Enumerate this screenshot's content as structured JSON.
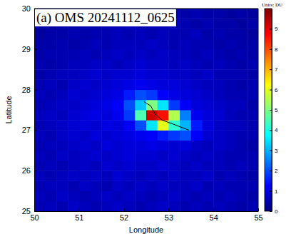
{
  "chart_data": {
    "type": "heatmap",
    "title": "(a) OMS 20241112_0625",
    "xlabel": "Longitude",
    "ylabel": "Latitude",
    "xlim": [
      50,
      55
    ],
    "ylim": [
      25,
      30
    ],
    "xticks": [
      50,
      51,
      52,
      53,
      54,
      55
    ],
    "yticks": [
      25,
      26,
      27,
      28,
      29,
      30
    ],
    "x_edges": [
      50,
      50.25,
      50.5,
      50.75,
      51,
      51.25,
      51.5,
      51.75,
      52,
      52.25,
      52.5,
      52.75,
      53,
      53.25,
      53.5,
      53.75,
      54,
      54.25,
      54.5,
      54.75,
      55
    ],
    "y_edges": [
      25,
      25.25,
      25.5,
      25.75,
      26,
      26.25,
      26.5,
      26.75,
      27,
      27.25,
      27.5,
      27.75,
      28,
      28.25,
      28.5,
      28.75,
      29,
      29.25,
      29.5,
      29.75,
      30
    ],
    "z": [
      [
        0.5,
        0.6,
        0.5,
        0.7,
        0.6,
        0.5,
        0.6,
        0.7,
        0.6,
        0.5,
        0.6,
        0.7,
        0.6,
        0.5,
        0.6,
        0.5,
        0.6,
        0.5,
        0.4,
        0.5
      ],
      [
        0.6,
        0.5,
        0.7,
        0.6,
        0.5,
        0.6,
        0.7,
        0.6,
        0.7,
        0.6,
        0.5,
        0.6,
        0.7,
        0.6,
        0.5,
        0.6,
        0.5,
        0.6,
        0.5,
        0.4
      ],
      [
        0.5,
        0.6,
        0.6,
        0.5,
        0.7,
        0.6,
        0.5,
        0.7,
        0.6,
        0.7,
        0.6,
        0.7,
        0.6,
        0.6,
        0.7,
        0.5,
        0.6,
        0.5,
        0.5,
        0.5
      ],
      [
        0.6,
        0.5,
        0.6,
        0.7,
        0.6,
        0.7,
        0.6,
        0.8,
        0.7,
        0.6,
        0.7,
        0.6,
        0.7,
        0.6,
        0.6,
        0.7,
        0.5,
        0.6,
        0.5,
        0.4
      ],
      [
        0.5,
        0.6,
        0.5,
        0.6,
        0.7,
        0.6,
        0.8,
        0.7,
        0.8,
        0.7,
        0.7,
        0.8,
        0.7,
        0.6,
        0.7,
        0.6,
        0.6,
        0.5,
        0.6,
        0.5
      ],
      [
        0.6,
        0.5,
        0.7,
        0.6,
        0.7,
        0.8,
        0.7,
        0.8,
        0.9,
        0.8,
        0.8,
        0.7,
        0.8,
        0.7,
        0.6,
        0.7,
        0.6,
        0.5,
        0.5,
        0.5
      ],
      [
        0.5,
        0.6,
        0.6,
        0.7,
        0.8,
        0.7,
        0.9,
        0.8,
        0.9,
        0.9,
        1.0,
        0.9,
        0.8,
        0.9,
        0.7,
        0.6,
        0.7,
        0.6,
        0.5,
        0.4
      ],
      [
        0.6,
        0.5,
        0.7,
        0.8,
        0.7,
        0.9,
        0.8,
        0.9,
        1.0,
        1.1,
        1.2,
        1.5,
        1.8,
        2.0,
        1.2,
        0.8,
        0.7,
        0.6,
        0.5,
        0.5
      ],
      [
        0.5,
        0.6,
        0.7,
        0.8,
        0.9,
        0.8,
        1.0,
        0.9,
        1.2,
        2.0,
        3.5,
        6.0,
        4.2,
        3.0,
        1.5,
        0.9,
        0.7,
        0.6,
        0.6,
        0.5
      ],
      [
        0.6,
        0.7,
        0.6,
        0.8,
        0.9,
        1.0,
        0.9,
        1.1,
        1.8,
        4.5,
        9.2,
        8.6,
        5.5,
        2.5,
        1.1,
        0.9,
        0.8,
        0.6,
        0.5,
        0.5
      ],
      [
        0.5,
        0.6,
        0.7,
        0.7,
        0.8,
        0.9,
        1.0,
        1.2,
        2.0,
        3.2,
        5.0,
        3.5,
        1.8,
        1.2,
        0.9,
        0.8,
        0.7,
        0.6,
        0.6,
        0.4
      ],
      [
        0.6,
        0.5,
        0.6,
        0.8,
        0.7,
        0.8,
        0.9,
        1.0,
        1.5,
        2.0,
        1.8,
        1.2,
        1.0,
        0.9,
        0.8,
        0.7,
        0.6,
        0.5,
        0.5,
        0.5
      ],
      [
        0.5,
        0.6,
        0.5,
        0.7,
        0.8,
        0.7,
        0.8,
        0.9,
        1.0,
        1.1,
        1.0,
        0.9,
        0.9,
        0.8,
        0.7,
        0.6,
        0.6,
        0.5,
        0.4,
        0.5
      ],
      [
        0.4,
        0.5,
        0.6,
        0.6,
        0.7,
        0.8,
        0.7,
        0.8,
        0.8,
        0.9,
        0.8,
        0.8,
        0.7,
        0.7,
        0.6,
        0.7,
        0.5,
        0.5,
        0.5,
        0.4
      ],
      [
        0.5,
        0.4,
        0.5,
        0.6,
        0.6,
        0.7,
        0.7,
        0.6,
        0.7,
        0.8,
        0.7,
        0.7,
        0.6,
        0.7,
        0.6,
        0.5,
        0.6,
        0.5,
        0.4,
        0.5
      ],
      [
        0.4,
        0.5,
        0.5,
        0.5,
        0.6,
        0.5,
        0.6,
        0.7,
        0.6,
        0.7,
        0.6,
        0.7,
        0.6,
        0.6,
        0.5,
        0.6,
        0.5,
        0.4,
        0.5,
        0.4
      ],
      [
        0.4,
        0.4,
        0.5,
        0.4,
        0.5,
        0.6,
        0.5,
        0.6,
        0.6,
        0.6,
        0.7,
        0.6,
        0.5,
        0.6,
        0.5,
        0.5,
        0.4,
        0.5,
        0.4,
        0.4
      ],
      [
        0.3,
        0.4,
        0.4,
        0.5,
        0.4,
        0.5,
        0.5,
        0.6,
        0.5,
        0.6,
        0.5,
        0.6,
        0.5,
        0.5,
        0.6,
        0.4,
        0.5,
        0.4,
        0.4,
        0.3
      ],
      [
        0.4,
        0.3,
        0.4,
        0.4,
        0.5,
        0.4,
        0.5,
        0.5,
        0.6,
        0.5,
        0.5,
        0.5,
        0.6,
        0.5,
        0.4,
        0.5,
        0.4,
        0.4,
        0.3,
        0.4
      ],
      [
        0.3,
        0.4,
        0.3,
        0.4,
        0.4,
        0.5,
        0.4,
        0.5,
        0.5,
        0.5,
        0.6,
        0.5,
        0.5,
        0.4,
        0.5,
        0.4,
        0.4,
        0.3,
        0.4,
        0.3
      ]
    ],
    "colorbar": {
      "title": "Units: DU",
      "range": [
        0,
        10
      ],
      "ticks": [
        0,
        1,
        2,
        3,
        4,
        5,
        6,
        7,
        8,
        9
      ]
    },
    "series": [
      {
        "type": "line",
        "color": "#000000",
        "x": [
          52.45,
          52.6,
          52.7,
          52.85,
          53.1,
          53.45
        ],
        "values": [
          27.7,
          27.6,
          27.4,
          27.25,
          27.15,
          27.0
        ]
      }
    ]
  }
}
